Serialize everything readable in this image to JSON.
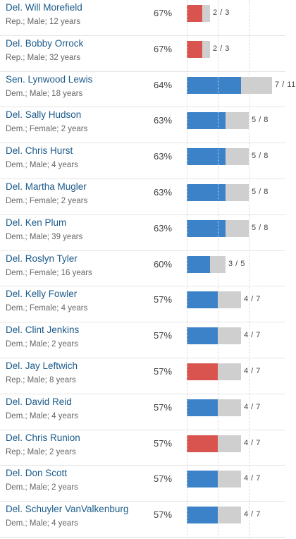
{
  "colors": {
    "dem": "#3b82c8",
    "rep": "#d9534f",
    "remainder": "#cfcfcf"
  },
  "rows": [
    {
      "name": "Del. Will Morefield",
      "meta": "Rep.; Male; 12 years",
      "percent": "67%",
      "fraction": "2 / 3",
      "won": 2,
      "total": 3,
      "party": "rep"
    },
    {
      "name": "Del. Bobby Orrock",
      "meta": "Rep.; Male; 32 years",
      "percent": "67%",
      "fraction": "2 / 3",
      "won": 2,
      "total": 3,
      "party": "rep"
    },
    {
      "name": "Sen. Lynwood Lewis",
      "meta": "Dem.; Male; 18 years",
      "percent": "64%",
      "fraction": "7 / 11",
      "won": 7,
      "total": 11,
      "party": "dem"
    },
    {
      "name": "Del. Sally Hudson",
      "meta": "Dem.; Female; 2 years",
      "percent": "63%",
      "fraction": "5 / 8",
      "won": 5,
      "total": 8,
      "party": "dem"
    },
    {
      "name": "Del. Chris Hurst",
      "meta": "Dem.; Male; 4 years",
      "percent": "63%",
      "fraction": "5 / 8",
      "won": 5,
      "total": 8,
      "party": "dem"
    },
    {
      "name": "Del. Martha Mugler",
      "meta": "Dem.; Female; 2 years",
      "percent": "63%",
      "fraction": "5 / 8",
      "won": 5,
      "total": 8,
      "party": "dem"
    },
    {
      "name": "Del. Ken Plum",
      "meta": "Dem.; Male; 39 years",
      "percent": "63%",
      "fraction": "5 / 8",
      "won": 5,
      "total": 8,
      "party": "dem"
    },
    {
      "name": "Del. Roslyn Tyler",
      "meta": "Dem.; Female; 16 years",
      "percent": "60%",
      "fraction": "3 / 5",
      "won": 3,
      "total": 5,
      "party": "dem"
    },
    {
      "name": "Del. Kelly Fowler",
      "meta": "Dem.; Female; 4 years",
      "percent": "57%",
      "fraction": "4 / 7",
      "won": 4,
      "total": 7,
      "party": "dem"
    },
    {
      "name": "Del. Clint Jenkins",
      "meta": "Dem.; Male; 2 years",
      "percent": "57%",
      "fraction": "4 / 7",
      "won": 4,
      "total": 7,
      "party": "dem"
    },
    {
      "name": "Del. Jay Leftwich",
      "meta": "Rep.; Male; 8 years",
      "percent": "57%",
      "fraction": "4 / 7",
      "won": 4,
      "total": 7,
      "party": "rep"
    },
    {
      "name": "Del. David Reid",
      "meta": "Dem.; Male; 4 years",
      "percent": "57%",
      "fraction": "4 / 7",
      "won": 4,
      "total": 7,
      "party": "dem"
    },
    {
      "name": "Del. Chris Runion",
      "meta": "Rep.; Male; 2 years",
      "percent": "57%",
      "fraction": "4 / 7",
      "won": 4,
      "total": 7,
      "party": "rep"
    },
    {
      "name": "Del. Don Scott",
      "meta": "Dem.; Male; 2 years",
      "percent": "57%",
      "fraction": "4 / 7",
      "won": 4,
      "total": 7,
      "party": "dem"
    },
    {
      "name": "Del. Schuyler VanValkenburg",
      "meta": "Dem.; Male; 4 years",
      "percent": "57%",
      "fraction": "4 / 7",
      "won": 4,
      "total": 7,
      "party": "dem"
    }
  ]
}
